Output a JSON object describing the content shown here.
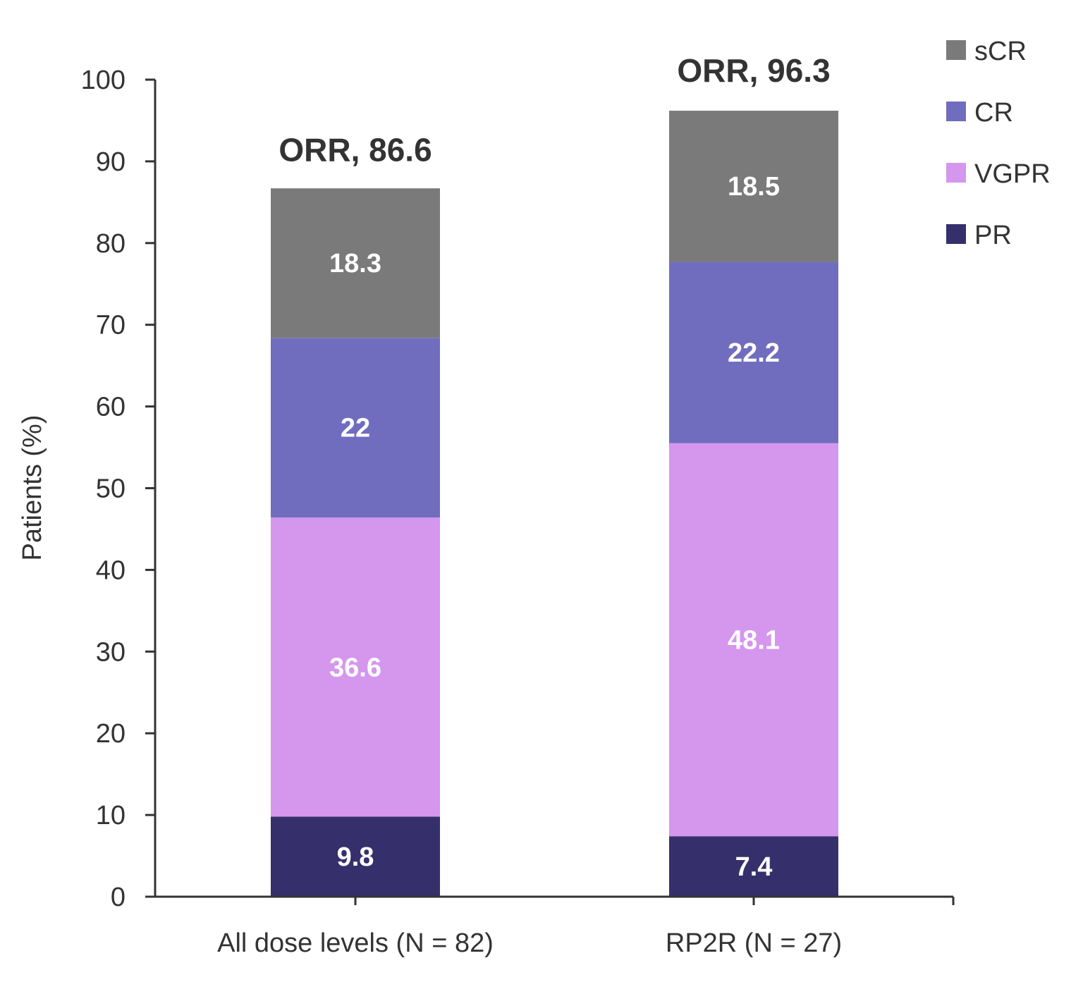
{
  "chart_data": {
    "type": "bar",
    "stacked": true,
    "categories": [
      "All dose levels (N = 82)",
      "RP2R (N = 27)"
    ],
    "series": [
      {
        "name": "PR",
        "values": [
          9.8,
          7.4
        ],
        "labels": [
          "9.8",
          "7.4"
        ],
        "color": "#35306b"
      },
      {
        "name": "VGPR",
        "values": [
          36.6,
          48.1
        ],
        "labels": [
          "36.6",
          "48.1"
        ],
        "color": "#d596ee"
      },
      {
        "name": "CR",
        "values": [
          22,
          22.2
        ],
        "labels": [
          "22",
          "22.2"
        ],
        "color": "#716dbe"
      },
      {
        "name": "sCR",
        "values": [
          18.3,
          18.5
        ],
        "labels": [
          "18.3",
          "18.5"
        ],
        "color": "#7a7a7a"
      }
    ],
    "totals": [
      86.6,
      96.3
    ],
    "total_labels": [
      "ORR, 86.6",
      "ORR, 96.3"
    ],
    "ylabel": "Patients (%)",
    "xlabel": "",
    "ylim": [
      0,
      100
    ],
    "yticks": [
      0,
      10,
      20,
      30,
      40,
      50,
      60,
      70,
      80,
      90,
      100
    ],
    "grid": false,
    "legend": {
      "position": "top-right",
      "order": [
        "sCR",
        "CR",
        "VGPR",
        "PR"
      ]
    },
    "colors": {
      "axis": "#333333",
      "text": "#333333",
      "segment_text": "#ffffff"
    }
  }
}
